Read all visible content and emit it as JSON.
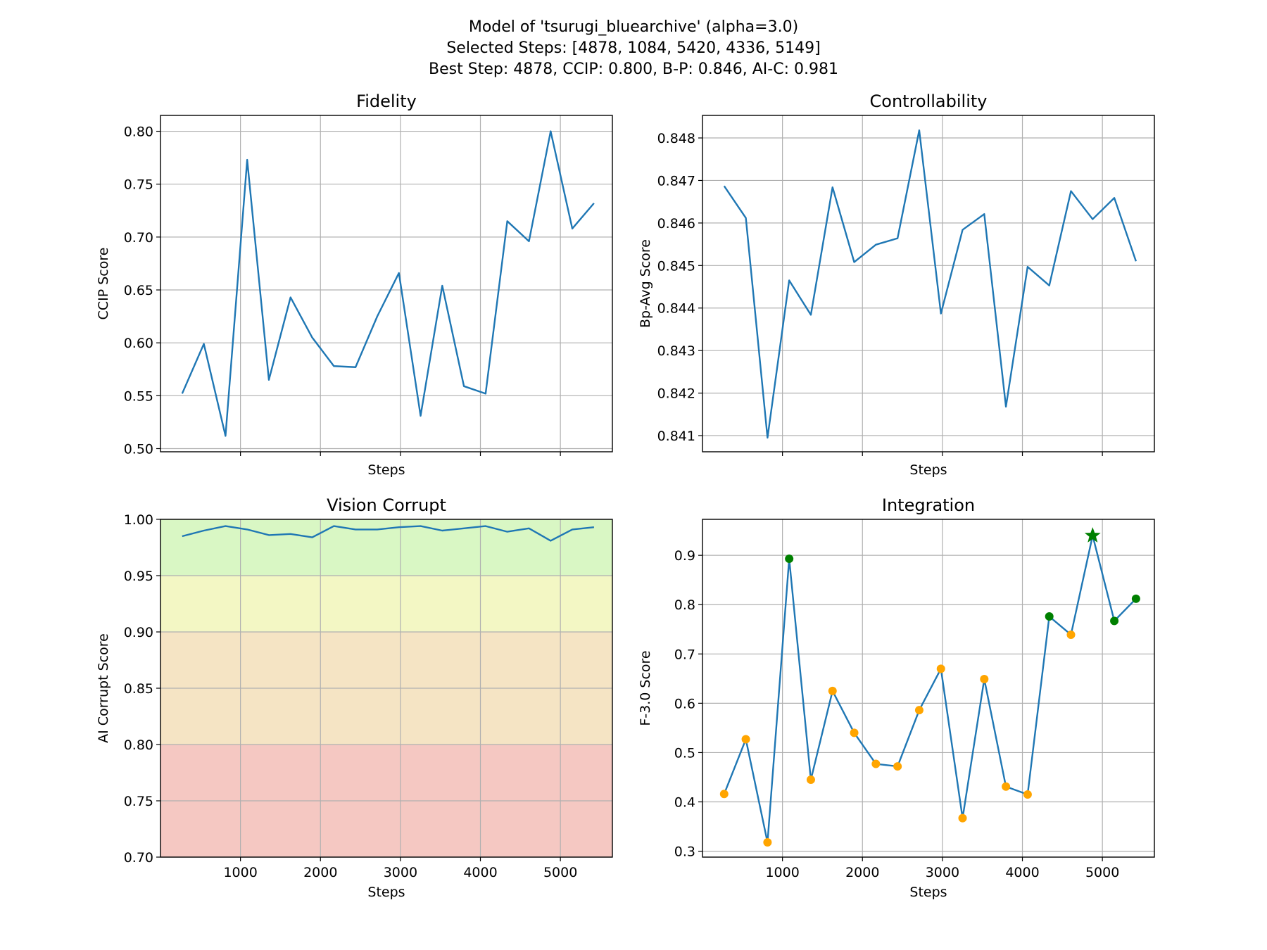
{
  "figure": {
    "title_lines": [
      "Model of 'tsurugi_bluearchive' (alpha=3.0)",
      "Selected Steps: [4878, 1084, 5420, 4336, 5149]",
      "Best Step: 4878, CCIP: 0.800, B-P: 0.846, AI-C: 0.981"
    ]
  },
  "colors": {
    "line": "#1f77b4",
    "grid": "#b0b0b0",
    "marker_normal": "#ffa500",
    "marker_selected": "#008000",
    "marker_best": "#008000",
    "band_green": "#d9f7c4",
    "band_yellow": "#f3f7c4",
    "band_orange": "#f5e4c4",
    "band_red": "#f5c8c2"
  },
  "chart_data": [
    {
      "id": "fidelity",
      "type": "line",
      "title": "Fidelity",
      "xlabel": "Steps",
      "ylabel": "CCIP Score",
      "show_x_tick_labels": false,
      "xlim": [
        0,
        5650
      ],
      "ylim": [
        0.497,
        0.815
      ],
      "x_ticks": [
        1000,
        2000,
        3000,
        4000,
        5000
      ],
      "y_ticks": [
        0.5,
        0.55,
        0.6,
        0.65,
        0.7,
        0.75,
        0.8
      ],
      "y_tick_labels": [
        "0.50",
        "0.55",
        "0.60",
        "0.65",
        "0.70",
        "0.75",
        "0.80"
      ],
      "grid": true,
      "x": [
        271,
        542,
        813,
        1084,
        1355,
        1626,
        1897,
        2168,
        2439,
        2710,
        2981,
        3252,
        3523,
        3794,
        4065,
        4336,
        4607,
        4878,
        5149,
        5420
      ],
      "y": [
        0.552,
        0.599,
        0.512,
        0.773,
        0.565,
        0.643,
        0.605,
        0.578,
        0.577,
        0.625,
        0.666,
        0.531,
        0.654,
        0.559,
        0.552,
        0.715,
        0.696,
        0.8,
        0.708,
        0.732
      ]
    },
    {
      "id": "controllability",
      "type": "line",
      "title": "Controllability",
      "xlabel": "Steps",
      "ylabel": "Bp-Avg Score",
      "show_x_tick_labels": false,
      "xlim": [
        0,
        5650
      ],
      "ylim": [
        0.84062,
        0.84853
      ],
      "x_ticks": [
        1000,
        2000,
        3000,
        4000,
        5000
      ],
      "y_ticks": [
        0.841,
        0.842,
        0.843,
        0.844,
        0.845,
        0.846,
        0.847,
        0.848
      ],
      "y_tick_labels": [
        "0.841",
        "0.842",
        "0.843",
        "0.844",
        "0.845",
        "0.846",
        "0.847",
        "0.848"
      ],
      "grid": true,
      "x": [
        271,
        542,
        813,
        1084,
        1355,
        1626,
        1897,
        2168,
        2439,
        2710,
        2981,
        3252,
        3523,
        3794,
        4065,
        4336,
        4607,
        4878,
        5149,
        5420
      ],
      "y": [
        0.84687,
        0.84612,
        0.84095,
        0.84465,
        0.84384,
        0.84684,
        0.84508,
        0.84549,
        0.84564,
        0.84818,
        0.84387,
        0.84584,
        0.84621,
        0.84168,
        0.84497,
        0.84453,
        0.84675,
        0.84609,
        0.84659,
        0.8451
      ]
    },
    {
      "id": "vision-corrupt",
      "type": "line",
      "title": "Vision Corrupt",
      "xlabel": "Steps",
      "ylabel": "AI Corrupt Score",
      "show_x_tick_labels": true,
      "xlim": [
        0,
        5650
      ],
      "ylim": [
        0.7,
        1.0
      ],
      "x_ticks": [
        1000,
        2000,
        3000,
        4000,
        5000
      ],
      "x_tick_labels": [
        "1000",
        "2000",
        "3000",
        "4000",
        "5000"
      ],
      "y_ticks": [
        0.7,
        0.75,
        0.8,
        0.85,
        0.9,
        0.95,
        1.0
      ],
      "y_tick_labels": [
        "0.70",
        "0.75",
        "0.80",
        "0.85",
        "0.90",
        "0.95",
        "1.00"
      ],
      "grid": true,
      "bands": [
        {
          "from": 0.95,
          "to": 1.0,
          "color_key": "band_green"
        },
        {
          "from": 0.9,
          "to": 0.95,
          "color_key": "band_yellow"
        },
        {
          "from": 0.8,
          "to": 0.9,
          "color_key": "band_orange"
        },
        {
          "from": 0.7,
          "to": 0.8,
          "color_key": "band_red"
        }
      ],
      "x": [
        271,
        542,
        813,
        1084,
        1355,
        1626,
        1897,
        2168,
        2439,
        2710,
        2981,
        3252,
        3523,
        3794,
        4065,
        4336,
        4607,
        4878,
        5149,
        5420
      ],
      "y": [
        0.985,
        0.99,
        0.994,
        0.991,
        0.986,
        0.987,
        0.984,
        0.994,
        0.991,
        0.991,
        0.993,
        0.994,
        0.99,
        0.992,
        0.994,
        0.989,
        0.992,
        0.981,
        0.991,
        0.993
      ]
    },
    {
      "id": "integration",
      "type": "line",
      "title": "Integration",
      "xlabel": "Steps",
      "ylabel": "F-3.0 Score",
      "show_x_tick_labels": true,
      "xlim": [
        0,
        5650
      ],
      "ylim": [
        0.288,
        0.973
      ],
      "x_ticks": [
        1000,
        2000,
        3000,
        4000,
        5000
      ],
      "x_tick_labels": [
        "1000",
        "2000",
        "3000",
        "4000",
        "5000"
      ],
      "y_ticks": [
        0.3,
        0.4,
        0.5,
        0.6,
        0.7,
        0.8,
        0.9
      ],
      "y_tick_labels": [
        "0.3",
        "0.4",
        "0.5",
        "0.6",
        "0.7",
        "0.8",
        "0.9"
      ],
      "grid": true,
      "selected_steps": [
        4878,
        1084,
        5420,
        4336,
        5149
      ],
      "best_step": 4878,
      "x": [
        271,
        542,
        813,
        1084,
        1355,
        1626,
        1897,
        2168,
        2439,
        2710,
        2981,
        3252,
        3523,
        3794,
        4065,
        4336,
        4607,
        4878,
        5149,
        5420
      ],
      "y": [
        0.416,
        0.527,
        0.318,
        0.893,
        0.445,
        0.625,
        0.54,
        0.477,
        0.472,
        0.586,
        0.67,
        0.367,
        0.649,
        0.431,
        0.415,
        0.776,
        0.739,
        0.94,
        0.767,
        0.812
      ]
    }
  ]
}
